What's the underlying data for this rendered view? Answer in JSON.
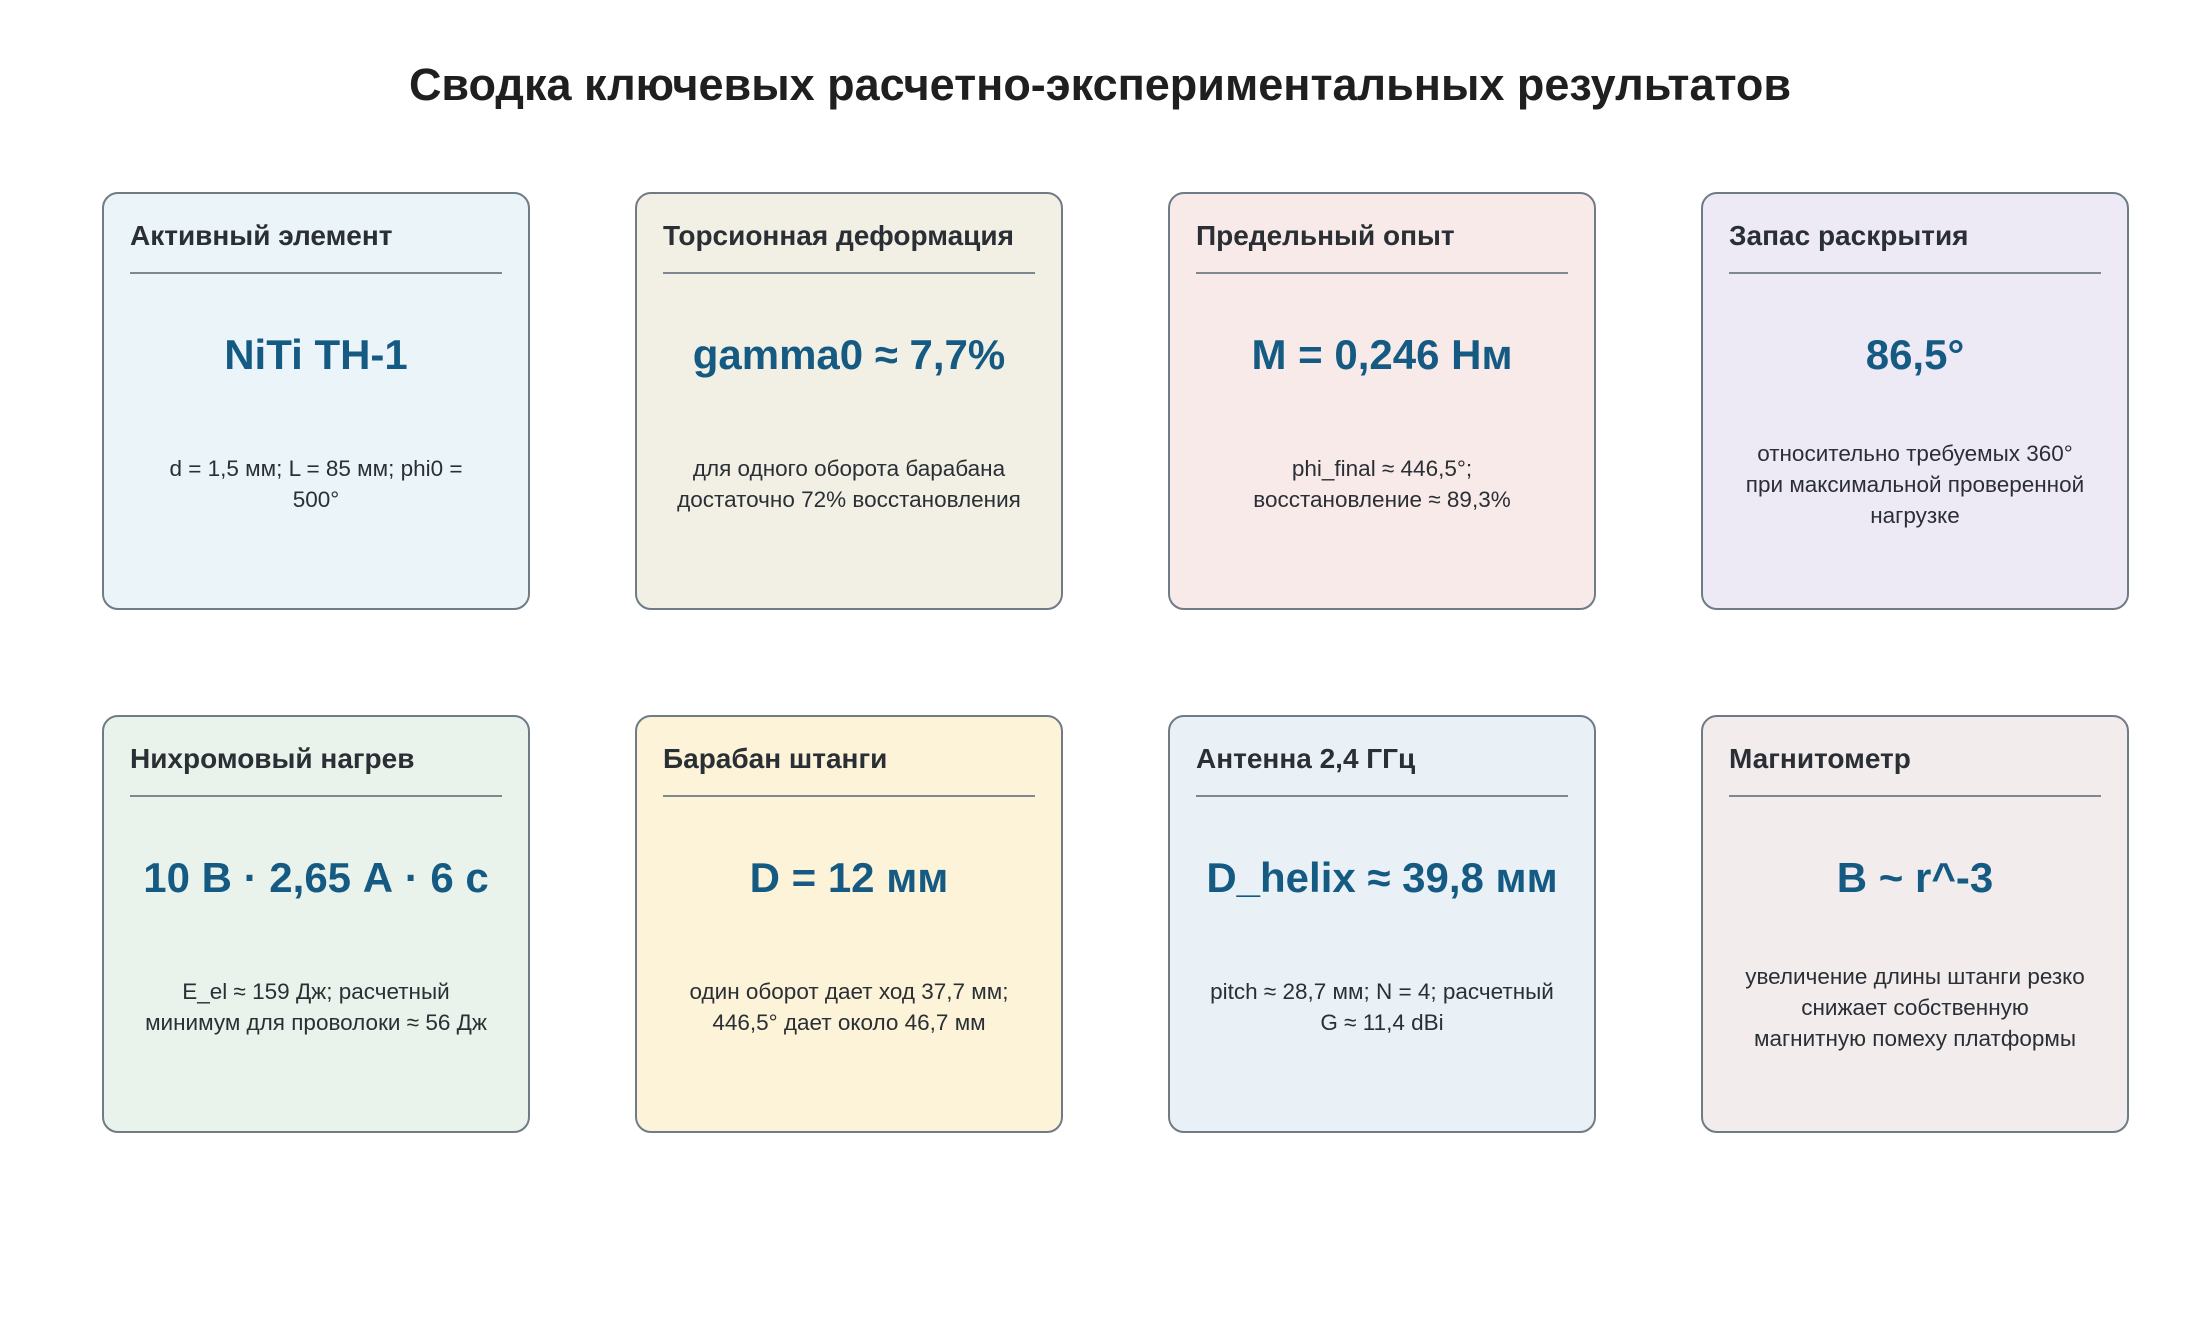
{
  "title": "Сводка ключевых расчетно-экспериментальных результатов",
  "cards": [
    {
      "title": "Активный элемент",
      "value": "NiTi TH-1",
      "note": "d = 1,5 мм; L = 85 мм; phi0 = 500°",
      "background": "#eaf4f9"
    },
    {
      "title": "Торсионная деформация",
      "value": "gamma0 ≈ 7,7%",
      "note": "для одного оборота барабана достаточно 72% восстановления",
      "background": "#f2f0e5"
    },
    {
      "title": "Предельный опыт",
      "value": "M = 0,246 Нм",
      "note": "phi_final ≈ 446,5°; восстановление ≈ 89,3%",
      "background": "#f8eae8"
    },
    {
      "title": "Запас раскрытия",
      "value": "86,5°",
      "note": "относительно требуемых 360° при максимальной проверенной нагрузке",
      "background": "#edeaf6"
    },
    {
      "title": "Нихромовый нагрев",
      "value": "10 В · 2,65 А · 6 с",
      "note": "E_el ≈ 159 Дж; расчетный минимум для проволоки ≈ 56 Дж",
      "background": "#e9f2eb"
    },
    {
      "title": "Барабан штанги",
      "value": "D = 12 мм",
      "note": "один оборот дает ход 37,7 мм; 446,5° дает около 46,7 мм",
      "background": "#fcf3d8"
    },
    {
      "title": "Антенна 2,4 ГГц",
      "value": "D_helix ≈ 39,8 мм",
      "note": "pitch ≈ 28,7 мм; N = 4; расчетный G ≈ 11,4 dBi",
      "background": "#e9f0f6"
    },
    {
      "title": "Магнитометр",
      "value": "B ~ r^-3",
      "note": "увеличение длины штанги резко снижает собственную магнитную помеху платформы",
      "background": "#f2ecec"
    }
  ]
}
